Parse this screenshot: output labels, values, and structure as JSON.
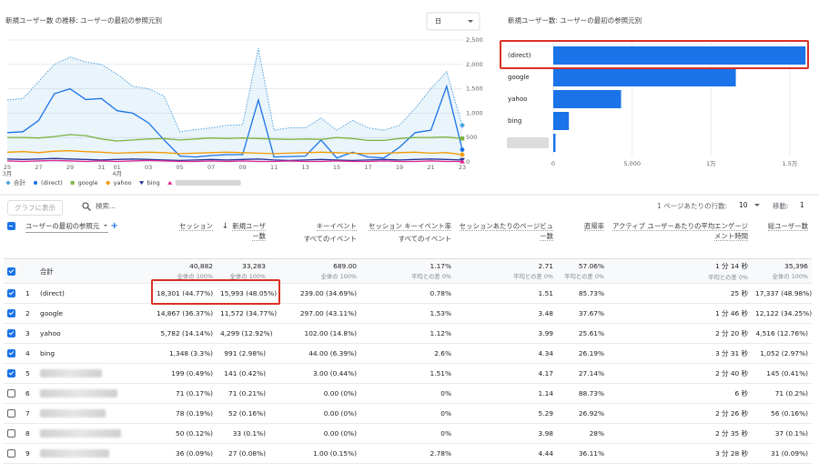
{
  "chart_data": [
    {
      "type": "line",
      "title": "新規ユーザー数 の推移: ユーザーの最初の参照元別",
      "period_button": "日",
      "categories": [
        "25",
        null,
        "27",
        null,
        "29",
        null,
        "31",
        "01",
        null,
        "03",
        null,
        "05",
        null,
        "07",
        null,
        "09",
        null,
        "11",
        null,
        "13",
        null,
        "15",
        null,
        "17",
        null,
        "19",
        null,
        "21",
        null,
        "23"
      ],
      "month_labels": [
        "3月",
        null,
        null,
        null,
        null,
        null,
        null,
        "4月",
        null,
        null,
        null,
        null,
        null,
        null,
        null,
        null,
        null,
        null,
        null,
        null,
        null,
        null,
        null,
        null,
        null,
        null,
        null,
        null,
        null,
        null
      ],
      "ylim": [
        0,
        2500
      ],
      "yticks": [
        0,
        500,
        {
          "value": 1000,
          "label": "1,000"
        },
        {
          "value": 1500,
          "label": "1,500"
        },
        {
          "value": 2000,
          "label": "2,000"
        },
        {
          "value": 2500,
          "label": "2,500"
        }
      ],
      "y_axis_side": "right",
      "grid": true,
      "series": [
        {
          "name": "合計",
          "color": "#4fa3e0",
          "style": "area",
          "marker": "diamond",
          "values": [
            1270,
            1300,
            1650,
            2000,
            2150,
            2050,
            2000,
            1800,
            1550,
            1500,
            1350,
            620,
            660,
            700,
            750,
            760,
            2330,
            650,
            700,
            700,
            900,
            650,
            850,
            700,
            650,
            750,
            1100,
            1500,
            1850,
            750
          ]
        },
        {
          "name": "(direct)",
          "color": "#1a73e8",
          "style": "line",
          "marker": "circle",
          "values": [
            600,
            620,
            850,
            1400,
            1500,
            1280,
            1300,
            1050,
            1000,
            800,
            450,
            120,
            100,
            130,
            150,
            150,
            1270,
            100,
            110,
            120,
            450,
            80,
            200,
            100,
            80,
            300,
            600,
            650,
            1550,
            250
          ]
        },
        {
          "name": "google",
          "color": "#7cb342",
          "style": "line",
          "marker": "square",
          "values": [
            500,
            500,
            490,
            520,
            560,
            540,
            470,
            430,
            450,
            470,
            480,
            450,
            470,
            490,
            480,
            490,
            480,
            470,
            460,
            470,
            460,
            500,
            480,
            440,
            440,
            480,
            500,
            500,
            510,
            480
          ]
        },
        {
          "name": "yahoo",
          "color": "#f29900",
          "style": "line",
          "marker": "diamond",
          "values": [
            200,
            210,
            190,
            220,
            230,
            210,
            200,
            180,
            190,
            200,
            190,
            170,
            180,
            190,
            200,
            190,
            180,
            170,
            180,
            190,
            200,
            190,
            180,
            170,
            180,
            190,
            200,
            180,
            190,
            150
          ]
        },
        {
          "name": "bing",
          "color": "#283593",
          "style": "line",
          "marker": "triangle-down",
          "values": [
            60,
            50,
            60,
            70,
            60,
            50,
            40,
            50,
            60,
            50,
            40,
            30,
            40,
            50,
            40,
            50,
            60,
            40,
            30,
            40,
            50,
            40,
            30,
            40,
            50,
            40,
            50,
            60,
            50,
            40
          ]
        },
        {
          "name": null,
          "color": "#e52592",
          "style": "line",
          "marker": "triangle-up",
          "values": [
            20,
            10,
            20,
            30,
            20,
            10,
            20,
            10,
            20,
            30,
            20,
            10,
            10,
            20,
            10,
            20,
            10,
            10,
            20,
            10,
            10,
            20,
            10,
            10,
            20,
            10,
            10,
            20,
            10,
            10
          ]
        }
      ]
    },
    {
      "type": "bar",
      "orientation": "horizontal",
      "title": "新規ユーザー数: ユーザーの最初の参照元別",
      "categories": [
        "(direct)",
        "google",
        "yahoo",
        "bing",
        null
      ],
      "values": [
        15993,
        11572,
        4299,
        991,
        141
      ],
      "color": "#1a73e8",
      "xlim": [
        0,
        16500
      ],
      "xticks": [
        0,
        {
          "value": 5000,
          "label": "5,000"
        },
        {
          "value": 10000,
          "label": "1万"
        },
        {
          "value": 15000,
          "label": "1.5万"
        }
      ],
      "grid": true
    }
  ],
  "table": {
    "toolbar": {
      "plot_button": "グラフに表示",
      "search_placeholder": "検索...",
      "rows_per_page_label": "1 ページあたりの行数:",
      "rows_per_page": "10",
      "goto_label": "移動:",
      "goto_page": "1"
    },
    "dimension_header": "ユーザーの最初の参照元",
    "columns": [
      {
        "title": "セッション"
      },
      {
        "title": "新規ユーザー数",
        "sorted": "desc"
      },
      {
        "title": "キーイベント",
        "subtitle": "すべてのイベント"
      },
      {
        "title": "セッション キーイベント率",
        "subtitle": "すべてのイベント"
      },
      {
        "title": "セッションあたりのページビュー数"
      },
      {
        "title": "直帰率"
      },
      {
        "title": "アクティブ ユーザーあたりの平均エンゲージメント時間"
      },
      {
        "title": "総ユーザー数"
      }
    ],
    "total": {
      "label": "合計",
      "checked": true,
      "cells": [
        {
          "value": "40,882",
          "note": "全体の 100%"
        },
        {
          "value": "33,283",
          "note": "全体の 100%"
        },
        {
          "value": "689.00",
          "note": "全体の 100%"
        },
        {
          "value": "1.17%",
          "note": "平均との差 0%"
        },
        {
          "value": "2.71",
          "note": "平均との差 0%"
        },
        {
          "value": "57.06%",
          "note": "平均との差 0%"
        },
        {
          "value": "1 分 14 秒",
          "note": "平均との差 0%"
        },
        {
          "value": "35,396",
          "note": "全体の 100%"
        }
      ]
    },
    "rows": [
      {
        "index": 1,
        "name": "(direct)",
        "checked": true,
        "cells": [
          "18,301 (44.77%)",
          "15,993 (48.05%)",
          "239.00 (34.69%)",
          "0.78%",
          "1.51",
          "85.73%",
          "25 秒",
          "17,337 (48.98%)"
        ]
      },
      {
        "index": 2,
        "name": "google",
        "checked": true,
        "cells": [
          "14,867 (36.37%)",
          "11,572 (34.77%)",
          "297.00 (43.11%)",
          "1.53%",
          "3.48",
          "37.67%",
          "1 分 46 秒",
          "12,122 (34.25%)"
        ]
      },
      {
        "index": 3,
        "name": "yahoo",
        "checked": true,
        "cells": [
          "5,782 (14.14%)",
          "4,299 (12.92%)",
          "102.00 (14.8%)",
          "1.12%",
          "3.99",
          "25.61%",
          "2 分 20 秒",
          "4,516 (12.76%)"
        ]
      },
      {
        "index": 4,
        "name": "bing",
        "checked": true,
        "cells": [
          "1,348 (3.3%)",
          "991 (2.98%)",
          "44.00 (6.39%)",
          "2.6%",
          "4.34",
          "26.19%",
          "3 分 31 秒",
          "1,052 (2.97%)"
        ]
      },
      {
        "index": 5,
        "name": null,
        "checked": true,
        "cells": [
          "199 (0.49%)",
          "141 (0.42%)",
          "3.00 (0.44%)",
          "1.51%",
          "4.17",
          "27.14%",
          "2 分 40 秒",
          "145 (0.41%)"
        ]
      },
      {
        "index": 6,
        "name": null,
        "checked": false,
        "cells": [
          "71 (0.17%)",
          "71 (0.21%)",
          "0.00 (0%)",
          "0%",
          "1.14",
          "88.73%",
          "6 秒",
          "71 (0.2%)"
        ]
      },
      {
        "index": 7,
        "name": null,
        "checked": false,
        "cells": [
          "78 (0.19%)",
          "52 (0.16%)",
          "0.00 (0%)",
          "0%",
          "5.29",
          "26.92%",
          "2 分 26 秒",
          "56 (0.16%)"
        ]
      },
      {
        "index": 8,
        "name": null,
        "checked": false,
        "cells": [
          "50 (0.12%)",
          "33 (0.1%)",
          "0.00 (0%)",
          "0%",
          "3.98",
          "28%",
          "2 分 35 秒",
          "37 (0.1%)"
        ]
      },
      {
        "index": 9,
        "name": null,
        "checked": false,
        "cells": [
          "36 (0.09%)",
          "27 (0.08%)",
          "1.00 (0.15%)",
          "2.78%",
          "4.44",
          "36.11%",
          "3 分 28 秒",
          "31 (0.09%)"
        ]
      }
    ]
  }
}
